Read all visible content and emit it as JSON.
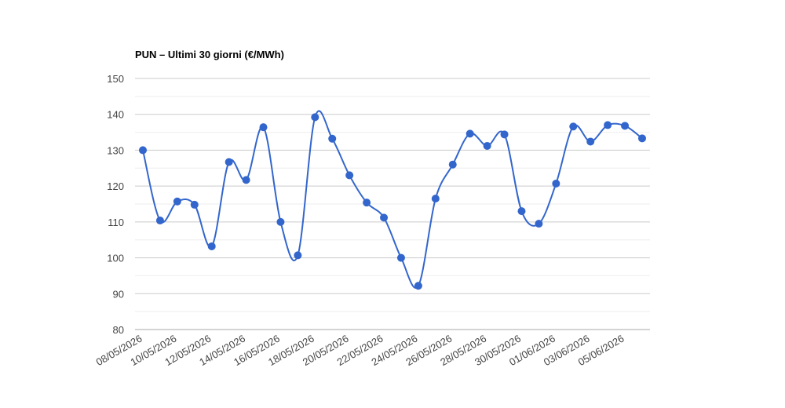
{
  "chart_data": {
    "type": "line",
    "title": "PUN – Ultimi 30 giorni (€/MWh)",
    "categories": [
      "08/05/2026",
      null,
      "10/05/2026",
      null,
      "12/05/2026",
      null,
      "14/05/2026",
      null,
      "16/05/2026",
      null,
      "18/05/2026",
      null,
      "20/05/2026",
      null,
      "22/05/2026",
      null,
      "24/05/2026",
      null,
      "26/05/2026",
      null,
      "28/05/2026",
      null,
      "30/05/2026",
      null,
      "01/06/2026",
      null,
      "03/06/2026",
      null,
      "05/06/2026",
      null
    ],
    "values": [
      130,
      110.4,
      115.7,
      114.8,
      103.2,
      126.7,
      121.7,
      136.4,
      110,
      100.7,
      139.2,
      133.2,
      123,
      115.4,
      111.2,
      100,
      92.2,
      116.5,
      126,
      134.6,
      131.2,
      134.4,
      113,
      109.5,
      120.7,
      136.6,
      132.4,
      137,
      136.8,
      133.3
    ],
    "color": "#3366cc",
    "smooth": true,
    "grid": true,
    "ylim": [
      80,
      150
    ],
    "yticks": [
      80,
      90,
      100,
      110,
      120,
      130,
      140,
      150
    ]
  }
}
